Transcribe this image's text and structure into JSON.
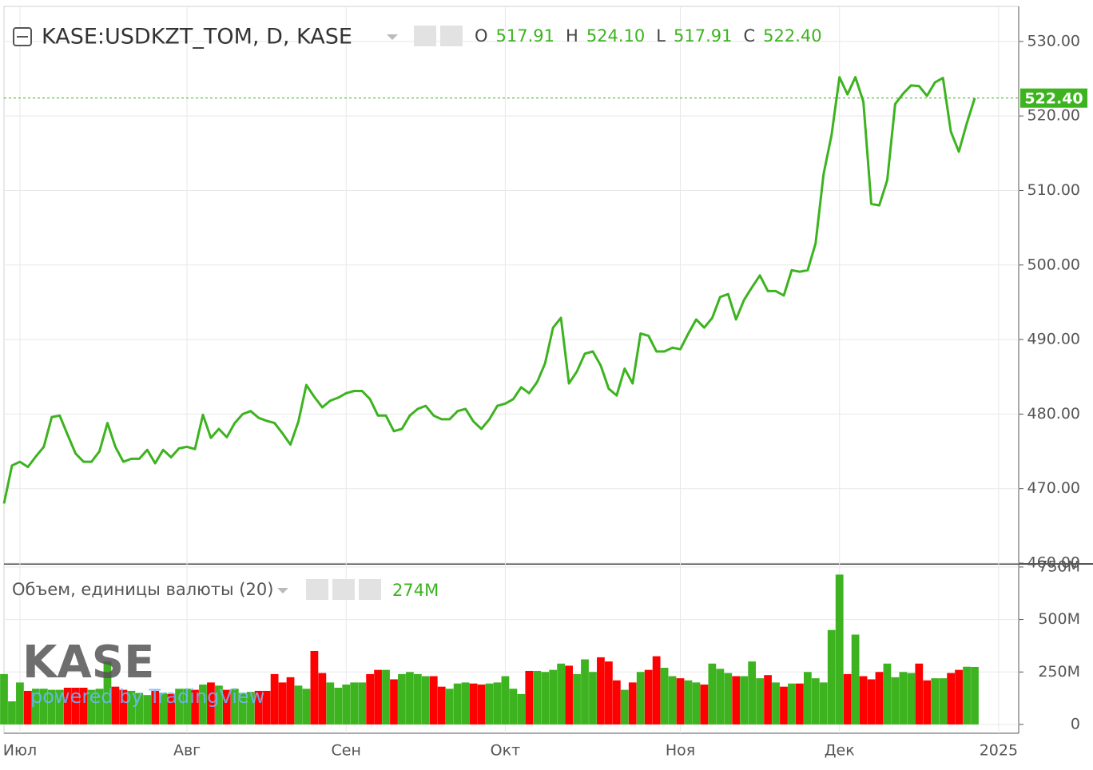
{
  "chart_data": [
    {
      "type": "line",
      "title": "KASE:USDKZT_TOM, D, KASE",
      "color": "#3cb31f",
      "grid": true,
      "ohlc": [
        {
          "label": "O",
          "value": 517.91
        },
        {
          "label": "H",
          "value": 524.1
        },
        {
          "label": "L",
          "value": 517.91
        },
        {
          "label": "C",
          "value": 522.4
        }
      ],
      "ohlc_labels": [
        "517.91",
        "524.10",
        "517.91",
        "522.40"
      ],
      "last_price": {
        "value": 522.4,
        "label": "522.40"
      },
      "values": [
        468.0,
        473.1,
        473.6,
        472.9,
        474.3,
        475.6,
        479.6,
        479.8,
        477.2,
        474.7,
        473.6,
        473.6,
        475.0,
        478.8,
        475.6,
        473.6,
        474.0,
        474.0,
        475.2,
        473.4,
        475.2,
        474.2,
        475.4,
        475.6,
        475.3,
        479.9,
        476.8,
        478.0,
        476.9,
        478.8,
        480.0,
        480.4,
        479.5,
        479.1,
        478.8,
        477.4,
        475.9,
        479.0,
        483.9,
        482.3,
        480.9,
        481.8,
        482.2,
        482.8,
        483.1,
        483.1,
        482.0,
        479.8,
        479.8,
        477.7,
        478.0,
        479.8,
        480.7,
        481.1,
        479.8,
        479.3,
        479.3,
        480.4,
        480.7,
        479.0,
        478.0,
        479.3,
        481.1,
        481.4,
        482.0,
        483.6,
        482.8,
        484.3,
        486.8,
        491.6,
        492.9,
        484.1,
        485.7,
        488.1,
        488.4,
        486.5,
        483.4,
        482.5,
        486.1,
        484.1,
        490.8,
        490.5,
        488.4,
        488.4,
        488.9,
        488.7,
        490.8,
        492.7,
        491.6,
        492.9,
        495.7,
        496.1,
        492.7,
        495.3,
        497.0,
        498.6,
        496.5,
        496.5,
        495.9,
        499.3,
        499.1,
        499.3,
        502.9,
        512.2,
        517.4,
        525.2,
        522.9,
        525.2,
        521.9,
        508.2,
        508.0,
        511.4,
        521.6,
        523.0,
        524.1,
        524.0,
        522.7,
        524.5,
        525.1,
        517.9,
        515.2,
        519.0,
        522.4
      ],
      "xlim": [
        0,
        122
      ],
      "xticks": [
        {
          "value": 2,
          "label": "Июл"
        },
        {
          "value": 23,
          "label": "Авг"
        },
        {
          "value": 43,
          "label": "Сен"
        },
        {
          "value": 63,
          "label": "Окт"
        },
        {
          "value": 85,
          "label": "Ноя"
        },
        {
          "value": 105,
          "label": "Дек"
        },
        {
          "value": 125,
          "label": "2025"
        }
      ],
      "ylim": [
        460,
        534.7
      ],
      "yticks": [
        {
          "value": 460,
          "label": "460.00"
        },
        {
          "value": 470,
          "label": "470.00"
        },
        {
          "value": 480,
          "label": "480.00"
        },
        {
          "value": 490,
          "label": "490.00"
        },
        {
          "value": 500,
          "label": "500.00"
        },
        {
          "value": 510,
          "label": "510.00"
        },
        {
          "value": 520,
          "label": "520.00"
        },
        {
          "value": 530,
          "label": "530.00"
        }
      ]
    },
    {
      "type": "bar",
      "title": "Объем, единицы валюты (20)",
      "current_label": "274M",
      "up_color": "#3cb31f",
      "down_color": "#ff0000",
      "watermark": {
        "logo": "KASE",
        "text": "powered by TradingView"
      },
      "values": [
        240000000.0,
        110000000.0,
        200000000.0,
        160000000.0,
        170000000.0,
        170000000.0,
        165000000.0,
        165000000.0,
        175000000.0,
        175000000.0,
        175000000.0,
        165000000.0,
        170000000.0,
        300000000.0,
        180000000.0,
        165000000.0,
        160000000.0,
        150000000.0,
        140000000.0,
        160000000.0,
        150000000.0,
        145000000.0,
        170000000.0,
        170000000.0,
        165000000.0,
        190000000.0,
        200000000.0,
        185000000.0,
        165000000.0,
        170000000.0,
        150000000.0,
        155000000.0,
        160000000.0,
        160000000.0,
        240000000.0,
        200000000.0,
        225000000.0,
        185000000.0,
        170000000.0,
        350000000.0,
        245000000.0,
        200000000.0,
        175000000.0,
        190000000.0,
        200000000.0,
        200000000.0,
        240000000.0,
        260000000.0,
        260000000.0,
        215000000.0,
        240000000.0,
        250000000.0,
        240000000.0,
        230000000.0,
        230000000.0,
        180000000.0,
        170000000.0,
        195000000.0,
        200000000.0,
        195000000.0,
        190000000.0,
        195000000.0,
        200000000.0,
        230000000.0,
        170000000.0,
        145000000.0,
        255000000.0,
        255000000.0,
        250000000.0,
        260000000.0,
        290000000.0,
        280000000.0,
        240000000.0,
        310000000.0,
        250000000.0,
        320000000.0,
        300000000.0,
        210000000.0,
        165000000.0,
        200000000.0,
        250000000.0,
        260000000.0,
        325000000.0,
        270000000.0,
        230000000.0,
        220000000.0,
        210000000.0,
        200000000.0,
        190000000.0,
        290000000.0,
        265000000.0,
        245000000.0,
        230000000.0,
        230000000.0,
        300000000.0,
        220000000.0,
        235000000.0,
        200000000.0,
        180000000.0,
        195000000.0,
        195000000.0,
        250000000.0,
        220000000.0,
        200000000.0,
        450000000.0,
        714000000.0,
        240000000.0,
        428000000.0,
        230000000.0,
        215000000.0,
        250000000.0,
        290000000.0,
        225000000.0,
        250000000.0,
        245000000.0,
        290000000.0,
        210000000.0,
        220000000.0,
        220000000.0,
        245000000.0,
        260000000.0,
        275000000.0,
        274000000.0
      ],
      "ylim": [
        -42000000.0,
        761000000.0
      ],
      "yticks": [
        0,
        {
          "value": 250000000.0,
          "label": "250M"
        },
        {
          "value": 500000000.0,
          "label": "500M"
        },
        {
          "value": 750000000.0,
          "label": "750M"
        }
      ]
    }
  ]
}
